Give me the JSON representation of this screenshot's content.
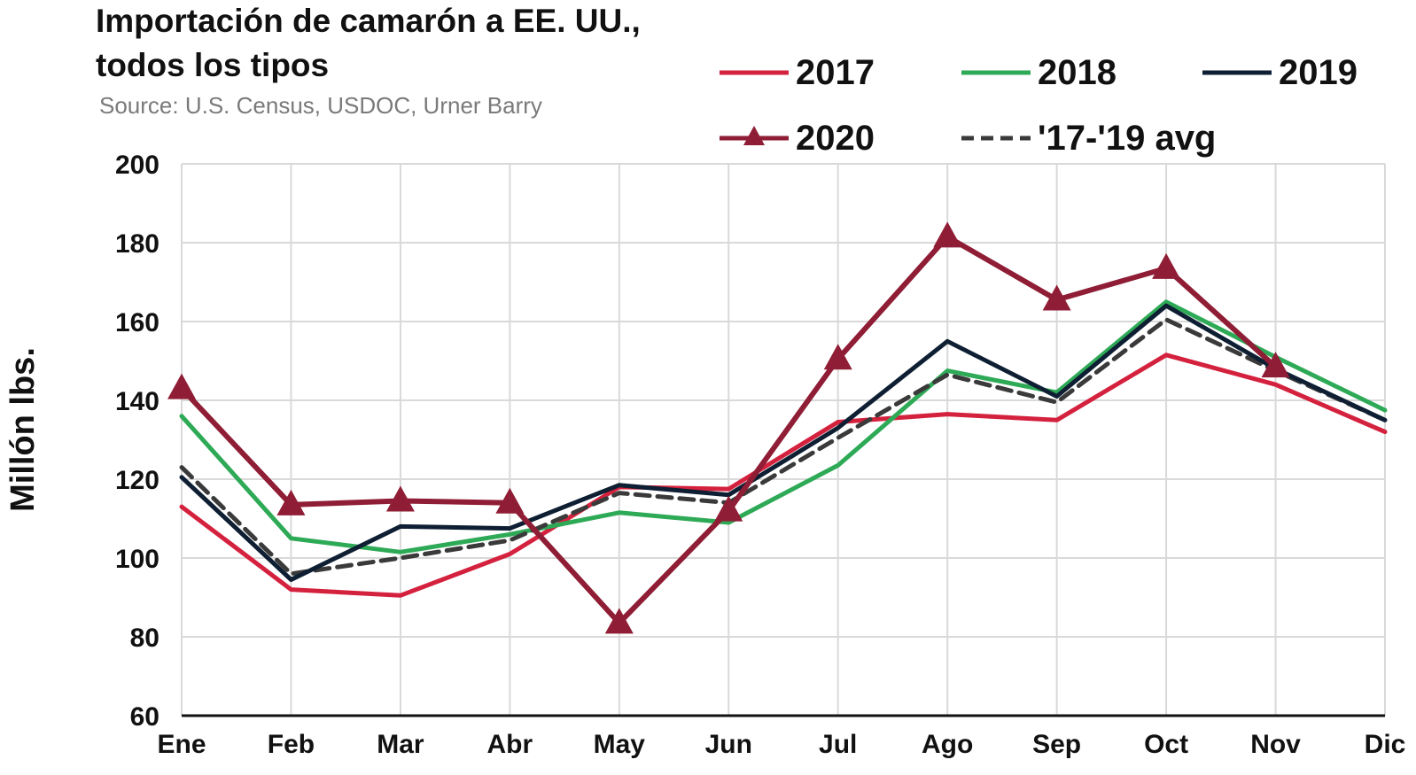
{
  "chart_data": {
    "type": "line",
    "title_lines": [
      "Importación de camarón a EE. UU.,",
      "todos los tipos"
    ],
    "source": "Source: U.S. Census, USDOC, Urner Barry",
    "ylabel": "Millón lbs.",
    "xlabel": "",
    "categories": [
      "Ene",
      "Feb",
      "Mar",
      "Abr",
      "May",
      "Jun",
      "Jul",
      "Ago",
      "Sep",
      "Oct",
      "Nov",
      "Dic"
    ],
    "ylim": [
      60,
      200
    ],
    "yticks": [
      60,
      80,
      100,
      120,
      140,
      160,
      180,
      200
    ],
    "grid": true,
    "legend_placement": "top-right",
    "series": [
      {
        "name": "2017",
        "color": "#d4213d",
        "style": "solid",
        "marker": "none",
        "values": [
          113,
          92,
          90.5,
          101,
          118,
          117.5,
          134.5,
          136.5,
          135,
          151.5,
          144,
          132
        ]
      },
      {
        "name": "2018",
        "color": "#2eaa57",
        "style": "solid",
        "marker": "none",
        "values": [
          136,
          105,
          101.5,
          106,
          111.5,
          109,
          123.5,
          147.5,
          142,
          165,
          151,
          137.5
        ]
      },
      {
        "name": "2019",
        "color": "#0f1f33",
        "style": "solid",
        "marker": "none",
        "values": [
          120.5,
          94.5,
          108,
          107.5,
          118.5,
          116,
          133,
          155,
          141,
          164,
          148,
          135
        ]
      },
      {
        "name": "2020",
        "color": "#8f1d35",
        "style": "solid",
        "marker": "triangle",
        "values": [
          143,
          113.5,
          114.5,
          114,
          83.5,
          112,
          150.5,
          181.5,
          165.5,
          173.5,
          148.5,
          null
        ]
      },
      {
        "name": "'17-'19 avg",
        "color": "#3a3a3a",
        "style": "dashed",
        "marker": "none",
        "values": [
          123,
          96,
          100,
          104.5,
          116.5,
          114,
          130.5,
          146.5,
          139.5,
          160.5,
          147.5,
          135
        ]
      }
    ]
  }
}
